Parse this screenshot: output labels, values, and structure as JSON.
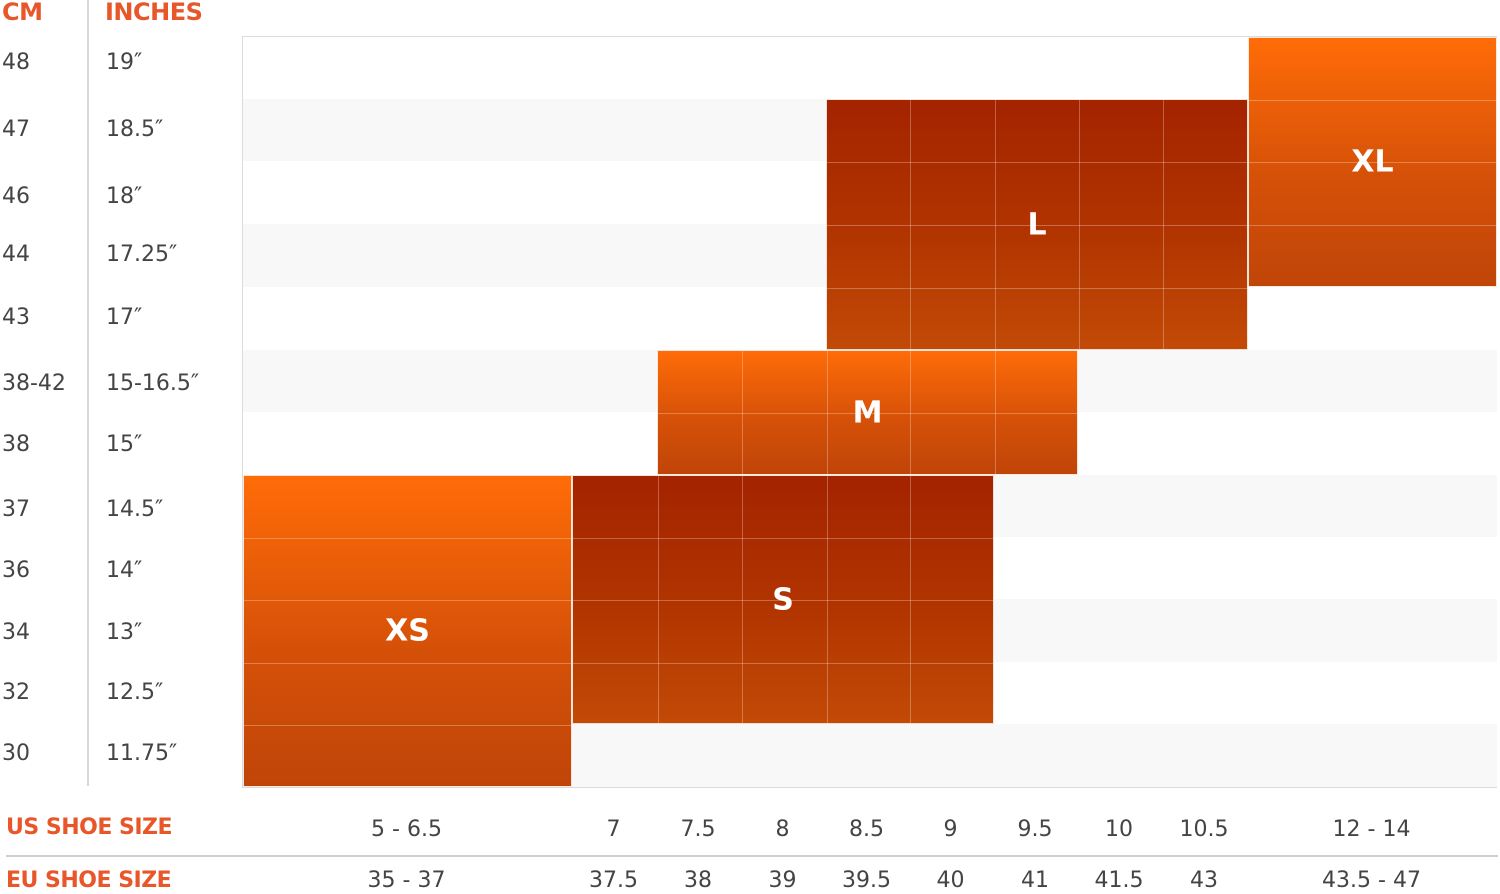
{
  "chart_data": {
    "type": "table",
    "title": "",
    "row_headers": {
      "cm": "CM",
      "inches": "INCHES"
    },
    "rows": [
      {
        "cm": "48",
        "inches": "19″"
      },
      {
        "cm": "47",
        "inches": "18.5″"
      },
      {
        "cm": "46",
        "inches": "18″"
      },
      {
        "cm": "44",
        "inches": "17.25″"
      },
      {
        "cm": "43",
        "inches": "17″"
      },
      {
        "cm": "38-42",
        "inches": "15-16.5″"
      },
      {
        "cm": "38",
        "inches": "15″"
      },
      {
        "cm": "37",
        "inches": "14.5″"
      },
      {
        "cm": "36",
        "inches": "14″"
      },
      {
        "cm": "34",
        "inches": "13″"
      },
      {
        "cm": "32",
        "inches": "12.5″"
      },
      {
        "cm": "30",
        "inches": "11.75″"
      }
    ],
    "columns_title_us": "US SHOE SIZE",
    "columns_title_eu": "EU SHOE SIZE",
    "columns": [
      {
        "us": "5 - 6.5",
        "eu": "35 - 37"
      },
      {
        "us": "7",
        "eu": "37.5"
      },
      {
        "us": "7.5",
        "eu": "38"
      },
      {
        "us": "8",
        "eu": "39"
      },
      {
        "us": "8.5",
        "eu": "39.5"
      },
      {
        "us": "9",
        "eu": "40"
      },
      {
        "us": "9.5",
        "eu": "41"
      },
      {
        "us": "10",
        "eu": "41.5"
      },
      {
        "us": "10.5",
        "eu": "43"
      },
      {
        "us": "12 - 14",
        "eu": "43.5 - 47"
      }
    ],
    "sizes": [
      {
        "label": "XS",
        "col_start": 0,
        "col_end": 0,
        "row_start": 7,
        "row_end": 11,
        "style": "bright"
      },
      {
        "label": "S",
        "col_start": 1,
        "col_end": 5,
        "row_start": 7,
        "row_end": 10,
        "style": "dark"
      },
      {
        "label": "M",
        "col_start": 2,
        "col_end": 6,
        "row_start": 5,
        "row_end": 6,
        "style": "bright"
      },
      {
        "label": "L",
        "col_start": 4,
        "col_end": 8,
        "row_start": 1,
        "row_end": 4,
        "style": "dark"
      },
      {
        "label": "XL",
        "col_start": 9,
        "col_end": 9,
        "row_start": 0,
        "row_end": 3,
        "style": "bright"
      }
    ],
    "colors": {
      "accent_text": "#e8572a",
      "bright_top": "#ff6c08",
      "bright_bottom": "#c04508",
      "dark_top": "#a42300",
      "dark_bottom": "#c24a06"
    }
  }
}
